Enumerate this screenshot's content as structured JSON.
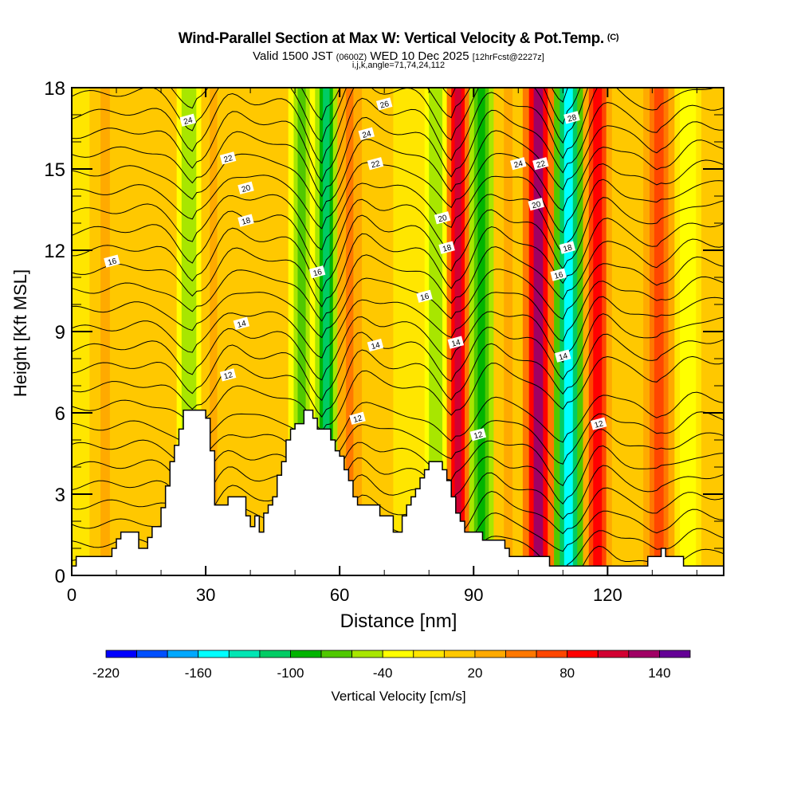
{
  "header": {
    "title": "Wind-Parallel Section at Max W: Vertical Velocity & Pot.Temp.",
    "title_mark": "(C)",
    "valid_prefix": "Valid 1500 JST",
    "valid_utc": "(0600Z)",
    "valid_date": "WED 10 Dec 2025",
    "forecast": "[12hrFcst@2227z]",
    "indices": "i,j,k,angle=71,74,24,112"
  },
  "chart_data": {
    "type": "heatmap",
    "title": "Wind-Parallel Section at Max W: Vertical Velocity & Pot.Temp.",
    "xlabel": "Distance [nm]",
    "ylabel": "Height [Kft MSL]",
    "xlim": [
      0,
      146
    ],
    "ylim": [
      0,
      18
    ],
    "x_ticks": [
      0,
      30,
      60,
      90,
      120
    ],
    "y_ticks": [
      0,
      3,
      6,
      9,
      12,
      15,
      18
    ],
    "colorbar": {
      "label": "Vertical Velocity [cm/s]",
      "placement": "bottom",
      "tick_labels": [
        "-220",
        "-160",
        "-100",
        "-40",
        "20",
        "80",
        "140"
      ],
      "bin_edges": [
        -220,
        -200,
        -180,
        -160,
        -140,
        -120,
        -100,
        -80,
        -60,
        -40,
        -20,
        0,
        20,
        40,
        60,
        80,
        100,
        120,
        140,
        160
      ],
      "colors": [
        "#0000ff",
        "#0050ff",
        "#00a8ff",
        "#00ffff",
        "#00e6b4",
        "#00cc64",
        "#00b400",
        "#50c800",
        "#a8e600",
        "#ffff00",
        "#ffe600",
        "#ffc800",
        "#ffaa00",
        "#ff7800",
        "#ff4600",
        "#ff0000",
        "#d20032",
        "#a00064",
        "#640096"
      ]
    },
    "velocity_columns": [
      {
        "x": 0,
        "w": -5
      },
      {
        "x": 8,
        "w": 25
      },
      {
        "x": 14,
        "w": 10
      },
      {
        "x": 20,
        "w": 15
      },
      {
        "x": 27,
        "w": -55
      },
      {
        "x": 31,
        "w": 20
      },
      {
        "x": 38,
        "w": 5
      },
      {
        "x": 45,
        "w": 10
      },
      {
        "x": 52,
        "w": -65
      },
      {
        "x": 57,
        "w": -110
      },
      {
        "x": 62,
        "w": 50
      },
      {
        "x": 68,
        "w": 5
      },
      {
        "x": 76,
        "w": -20
      },
      {
        "x": 82,
        "w": -60
      },
      {
        "x": 86,
        "w": 110
      },
      {
        "x": 92,
        "w": -100
      },
      {
        "x": 97,
        "w": 20
      },
      {
        "x": 105,
        "w": 120
      },
      {
        "x": 111,
        "w": -145
      },
      {
        "x": 118,
        "w": 80
      },
      {
        "x": 124,
        "w": 10
      },
      {
        "x": 132,
        "w": 75
      },
      {
        "x": 138,
        "w": -40
      },
      {
        "x": 144,
        "w": 15
      }
    ],
    "terrain_kft": [
      [
        0,
        0.35
      ],
      [
        1,
        0.7
      ],
      [
        8,
        0.7
      ],
      [
        9,
        1.0
      ],
      [
        10,
        1.35
      ],
      [
        11,
        1.6
      ],
      [
        15,
        1.6
      ],
      [
        15,
        1.0
      ],
      [
        17,
        1.0
      ],
      [
        17,
        1.4
      ],
      [
        18,
        1.8
      ],
      [
        20,
        2.5
      ],
      [
        21,
        3.3
      ],
      [
        22,
        4.2
      ],
      [
        23,
        4.8
      ],
      [
        24,
        5.4
      ],
      [
        25,
        6.1
      ],
      [
        28,
        6.1
      ],
      [
        29,
        6.1
      ],
      [
        30,
        5.8
      ],
      [
        31,
        4.6
      ],
      [
        32,
        3.0
      ],
      [
        32,
        2.6
      ],
      [
        34,
        2.6
      ],
      [
        35,
        2.9
      ],
      [
        39,
        2.9
      ],
      [
        39,
        2.2
      ],
      [
        40,
        1.8
      ],
      [
        41,
        2.2
      ],
      [
        42,
        1.6
      ],
      [
        43,
        2.3
      ],
      [
        44,
        2.6
      ],
      [
        45,
        2.9
      ],
      [
        46,
        3.7
      ],
      [
        47,
        4.2
      ],
      [
        48,
        5.0
      ],
      [
        49,
        5.4
      ],
      [
        50,
        5.6
      ],
      [
        51,
        5.6
      ],
      [
        52,
        6.1
      ],
      [
        53,
        6.1
      ],
      [
        54,
        5.8
      ],
      [
        55,
        5.4
      ],
      [
        58,
        5.4
      ],
      [
        58,
        5.0
      ],
      [
        59,
        4.6
      ],
      [
        60,
        4.4
      ],
      [
        61,
        3.9
      ],
      [
        62,
        3.5
      ],
      [
        63,
        2.9
      ],
      [
        64,
        2.6
      ],
      [
        68,
        2.6
      ],
      [
        69,
        2.2
      ],
      [
        72,
        2.2
      ],
      [
        72,
        1.6
      ],
      [
        73,
        1.6
      ],
      [
        74,
        2.2
      ],
      [
        75,
        2.6
      ],
      [
        76,
        2.9
      ],
      [
        77,
        3.2
      ],
      [
        78,
        3.6
      ],
      [
        79,
        3.9
      ],
      [
        80,
        4.2
      ],
      [
        82,
        4.2
      ],
      [
        83,
        3.9
      ],
      [
        84,
        3.5
      ],
      [
        85,
        2.9
      ],
      [
        86,
        2.3
      ],
      [
        87,
        2.0
      ],
      [
        88,
        1.6
      ],
      [
        91,
        1.6
      ],
      [
        92,
        1.3
      ],
      [
        94,
        1.3
      ],
      [
        97,
        1.0
      ],
      [
        98,
        0.7
      ],
      [
        104,
        0.7
      ],
      [
        107,
        0.35
      ],
      [
        129,
        0.35
      ],
      [
        129,
        0.7
      ],
      [
        132,
        1.0
      ],
      [
        133,
        0.7
      ],
      [
        135,
        0.7
      ],
      [
        137,
        0.35
      ],
      [
        146,
        0.35
      ]
    ],
    "theta_contour_labels": [
      {
        "label": "24",
        "x": 26,
        "y": 16.8
      },
      {
        "label": "22",
        "x": 35,
        "y": 15.4
      },
      {
        "label": "20",
        "x": 39,
        "y": 14.3
      },
      {
        "label": "18",
        "x": 39,
        "y": 13.1
      },
      {
        "label": "16",
        "x": 9,
        "y": 11.6
      },
      {
        "label": "14",
        "x": 38,
        "y": 9.3
      },
      {
        "label": "12",
        "x": 35,
        "y": 7.4
      },
      {
        "label": "26",
        "x": 70,
        "y": 17.4
      },
      {
        "label": "24",
        "x": 66,
        "y": 16.3
      },
      {
        "label": "22",
        "x": 68,
        "y": 15.2
      },
      {
        "label": "16",
        "x": 55,
        "y": 11.2
      },
      {
        "label": "14",
        "x": 68,
        "y": 8.5
      },
      {
        "label": "12",
        "x": 64,
        "y": 5.8
      },
      {
        "label": "16",
        "x": 79,
        "y": 10.3
      },
      {
        "label": "20",
        "x": 83,
        "y": 13.2
      },
      {
        "label": "18",
        "x": 84,
        "y": 12.1
      },
      {
        "label": "14",
        "x": 86,
        "y": 8.6
      },
      {
        "label": "12",
        "x": 91,
        "y": 5.2
      },
      {
        "label": "24",
        "x": 100,
        "y": 15.2
      },
      {
        "label": "22",
        "x": 105,
        "y": 15.2
      },
      {
        "label": "20",
        "x": 104,
        "y": 13.7
      },
      {
        "label": "28",
        "x": 112,
        "y": 16.9
      },
      {
        "label": "18",
        "x": 111,
        "y": 12.1
      },
      {
        "label": "16",
        "x": 109,
        "y": 11.1
      },
      {
        "label": "14",
        "x": 110,
        "y": 8.1
      },
      {
        "label": "12",
        "x": 118,
        "y": 5.6
      }
    ]
  }
}
